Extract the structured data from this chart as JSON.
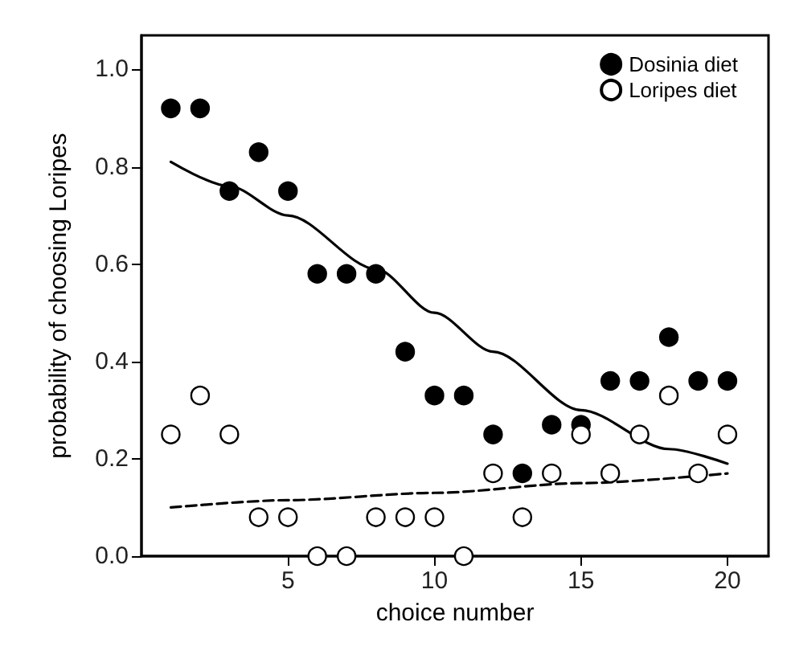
{
  "chart_data": {
    "type": "scatter",
    "xlabel": "choice number",
    "ylabel": "probability of choosing Loripes",
    "xlim": [
      0,
      21.4
    ],
    "xticks": [
      5,
      10,
      15,
      20
    ],
    "ylim": [
      0,
      1.07
    ],
    "yticks": [
      {
        "value": 0,
        "label": "0.0"
      },
      {
        "value": 0.2,
        "label": "0.2"
      },
      {
        "value": 0.4,
        "label": "0.4"
      },
      {
        "value": 0.6,
        "label": "0.6"
      },
      {
        "value": 0.8,
        "label": "0.8"
      },
      {
        "value": 1,
        "label": "1.0"
      }
    ],
    "grid": false,
    "legend": "top right",
    "series": [
      {
        "name": "Dosinia diet",
        "marker": "circle",
        "color": "#000000",
        "x": [
          1,
          2,
          3,
          4,
          5,
          6,
          7,
          8,
          9,
          10,
          11,
          12,
          13,
          14,
          15,
          16,
          17,
          18,
          19,
          20
        ],
        "values": [
          0.92,
          0.92,
          0.75,
          0.83,
          0.75,
          0.58,
          0.58,
          0.58,
          0.42,
          0.33,
          0.33,
          0.25,
          0.17,
          0.27,
          0.27,
          0.36,
          0.36,
          0.45,
          0.36,
          0.36
        ]
      },
      {
        "name": "Loripes diet",
        "marker": "circle",
        "color": "#ffffff",
        "x": [
          1,
          2,
          3,
          4,
          5,
          6,
          7,
          8,
          9,
          10,
          11,
          12,
          13,
          14,
          15,
          16,
          17,
          18,
          19,
          20
        ],
        "values": [
          0.25,
          0.33,
          0.25,
          0.08,
          0.08,
          0,
          0,
          0.08,
          0.08,
          0.08,
          0,
          0.17,
          0.08,
          0.17,
          0.25,
          0.17,
          0.25,
          0.33,
          0.17,
          0.25
        ]
      },
      {
        "type": "line",
        "marker": "none",
        "line_style": "solid",
        "color": "#000000",
        "x": [
          1,
          3,
          5,
          8,
          10,
          12,
          15,
          18,
          20
        ],
        "values": [
          0.81,
          0.76,
          0.7,
          0.59,
          0.5,
          0.42,
          0.3,
          0.22,
          0.19
        ]
      },
      {
        "type": "line",
        "marker": "none",
        "line_style": "dashed",
        "color": "#000000",
        "x": [
          1,
          5,
          10,
          15,
          20
        ],
        "values": [
          0.1,
          0.115,
          0.13,
          0.15,
          0.17
        ]
      }
    ]
  }
}
